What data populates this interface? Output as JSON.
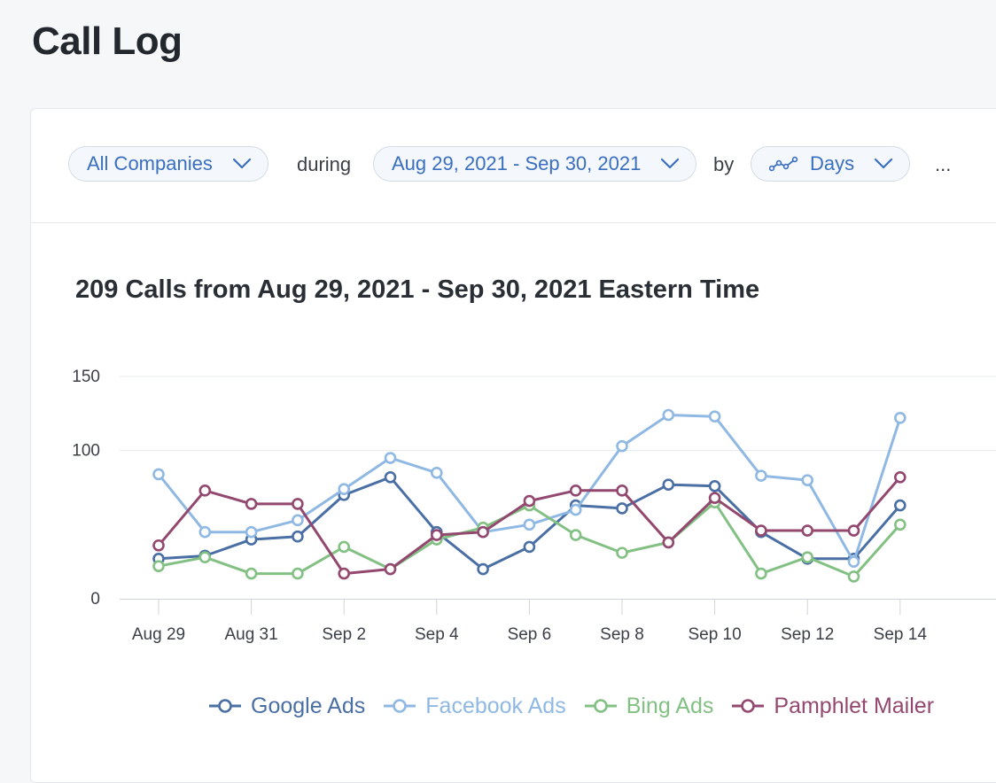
{
  "page": {
    "title": "Call Log"
  },
  "filters": {
    "company": "All Companies",
    "during_label": "during",
    "date_range": "Aug 29, 2021 - Sep 30, 2021",
    "by_label": "by",
    "interval": "Days",
    "interval_icon": "line-chart-icon",
    "more": "..."
  },
  "colors": {
    "accent": "#3a6fc0",
    "google": "#4a6fa5",
    "facebook": "#8fb8e3",
    "bing": "#82c083",
    "pamphlet": "#93486f"
  },
  "chart_data": {
    "type": "line",
    "title": "209 Calls from Aug 29, 2021 - Sep 30, 2021 Eastern Time",
    "xlabel": "",
    "ylabel": "",
    "ylim": [
      0,
      150
    ],
    "yticks": [
      "0",
      "100",
      "150"
    ],
    "xticks": [
      "Aug 29",
      "Aug 31",
      "Sep 2",
      "Sep 4",
      "Sep 6",
      "Sep 8",
      "Sep 10",
      "Sep 12",
      "Sep 14"
    ],
    "grid": true,
    "legend": "bottom",
    "series": [
      {
        "name": "Google Ads",
        "color": "#4a6fa5",
        "values": [
          27,
          29,
          40,
          42,
          70,
          82,
          45,
          20,
          35,
          63,
          61,
          77,
          76,
          45,
          27,
          27,
          63
        ]
      },
      {
        "name": "Facebook Ads",
        "color": "#8fb8e3",
        "values": [
          84,
          45,
          45,
          53,
          74,
          95,
          85,
          45,
          50,
          60,
          103,
          124,
          123,
          83,
          80,
          25,
          122
        ]
      },
      {
        "name": "Bing Ads",
        "color": "#82c083",
        "values": [
          22,
          28,
          17,
          17,
          35,
          20,
          40,
          48,
          63,
          43,
          31,
          38,
          65,
          17,
          28,
          15,
          50
        ]
      },
      {
        "name": "Pamphlet Mailer",
        "color": "#93486f",
        "values": [
          36,
          73,
          64,
          64,
          17,
          20,
          43,
          45,
          66,
          73,
          73,
          38,
          68,
          46,
          46,
          46,
          82
        ]
      }
    ]
  }
}
